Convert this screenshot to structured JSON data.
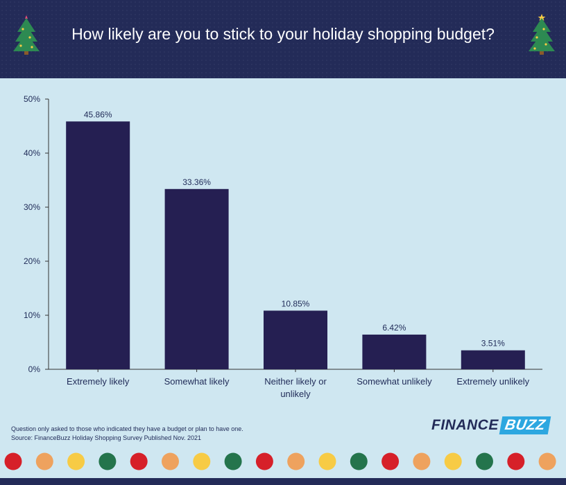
{
  "title": "How likely are you to stick to your holiday shopping budget?",
  "footnotes": {
    "note": "Question only asked to those who indicated they have a budget or plan to have one.",
    "source": "Source: FinanceBuzz Holiday Shopping Survey Published Nov. 2021"
  },
  "logo": {
    "part1": "FINANCE",
    "part2": "BUZZ"
  },
  "colors": {
    "header_bg": "#232b58",
    "chart_bg": "#cfe7f1",
    "bar": "#251f52",
    "logo_accent": "#2da7e0",
    "dot_colors": [
      "#d62029",
      "#eea25e",
      "#f7cb45",
      "#24744c",
      "#d62029",
      "#eea25e",
      "#f7cb45",
      "#24744c",
      "#d62029",
      "#eea25e",
      "#f7cb45",
      "#24744c",
      "#d62029",
      "#eea25e",
      "#f7cb45",
      "#24744c",
      "#d62029",
      "#eea25e"
    ]
  },
  "icons": [
    "christmas-tree-icon",
    "christmas-tree-icon"
  ],
  "chart_data": {
    "type": "bar",
    "categories": [
      "Extremely likely",
      "Somewhat likely",
      "Neither likely or unlikely",
      "Somewhat unlikely",
      "Extremely unlikely"
    ],
    "category_lines": [
      [
        "Extremely likely"
      ],
      [
        "Somewhat likely"
      ],
      [
        "Neither likely or",
        "unlikely"
      ],
      [
        "Somewhat unlikely"
      ],
      [
        "Extremely unlikely"
      ]
    ],
    "values": [
      45.86,
      33.36,
      10.85,
      6.42,
      3.51
    ],
    "data_labels": [
      "45.86%",
      "33.36%",
      "10.85%",
      "6.42%",
      "3.51%"
    ],
    "yticks": [
      0,
      10,
      20,
      30,
      40,
      50
    ],
    "ytick_labels": [
      "0%",
      "10%",
      "20%",
      "30%",
      "40%",
      "50%"
    ],
    "ylim": [
      0,
      50
    ],
    "title": "How likely are you to stick to your holiday shopping budget?",
    "xlabel": "",
    "ylabel": "",
    "grid": false,
    "legend": "none"
  }
}
